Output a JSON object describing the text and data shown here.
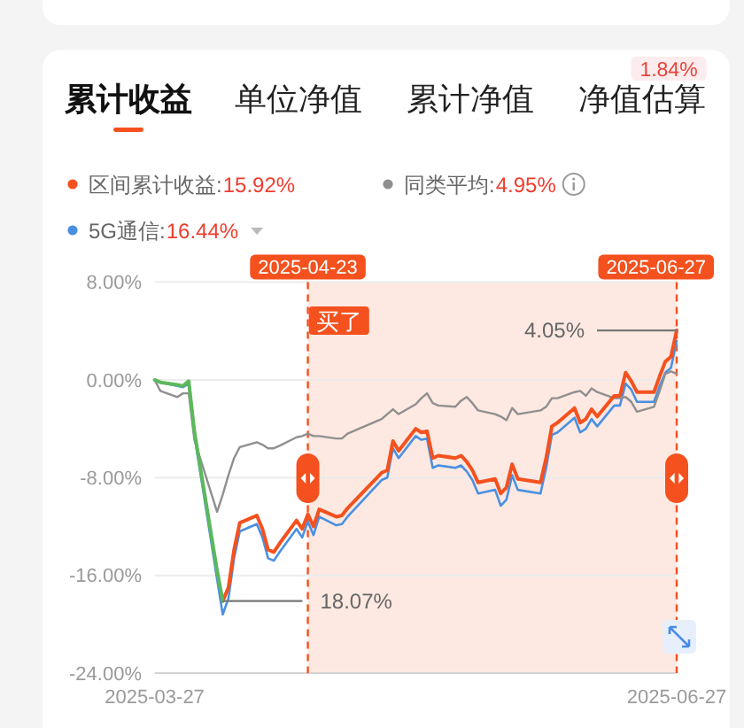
{
  "chart_data": {
    "type": "line",
    "annotations": [
      "累计收益",
      "单位净值",
      "累计净值",
      "净值估算",
      "1.84%",
      "15.92%",
      "4.95%",
      "16.44%",
      "买了",
      {
        "text": "18.07%",
        "x": "2025-04-08",
        "y": -18.1
      },
      {
        "text": "4.05%",
        "x": "2025-06-27",
        "y": 4.05
      }
    ],
    "x": [
      "2025-03-27",
      "2025-03-28",
      "2025-03-31",
      "2025-04-01",
      "2025-04-02",
      "2025-04-03",
      "2025-04-07",
      "2025-04-08",
      "2025-04-09",
      "2025-04-10",
      "2025-04-11",
      "2025-04-14",
      "2025-04-15",
      "2025-04-16",
      "2025-04-17",
      "2025-04-18",
      "2025-04-21",
      "2025-04-22",
      "2025-04-23",
      "2025-04-24",
      "2025-04-25",
      "2025-04-28",
      "2025-04-29",
      "2025-04-30",
      "2025-05-06",
      "2025-05-07",
      "2025-05-08",
      "2025-05-09",
      "2025-05-12",
      "2025-05-13",
      "2025-05-14",
      "2025-05-15",
      "2025-05-16",
      "2025-05-19",
      "2025-05-20",
      "2025-05-21",
      "2025-05-22",
      "2025-05-23",
      "2025-05-26",
      "2025-05-27",
      "2025-05-28",
      "2025-05-29",
      "2025-05-30",
      "2025-06-03",
      "2025-06-04",
      "2025-06-05",
      "2025-06-06",
      "2025-06-09",
      "2025-06-10",
      "2025-06-11",
      "2025-06-12",
      "2025-06-13",
      "2025-06-16",
      "2025-06-17",
      "2025-06-18",
      "2025-06-19",
      "2025-06-20",
      "2025-06-23",
      "2025-06-24",
      "2025-06-25",
      "2025-06-26",
      "2025-06-27"
    ],
    "series": [
      {
        "color": "#5cb85c",
        "values": [
          0,
          -0.2,
          -0.4,
          -0.5,
          -0.1,
          -4.2,
          -15.6,
          -18.1,
          null,
          null,
          null,
          null,
          null,
          null,
          null,
          null,
          null,
          null,
          null,
          null,
          null,
          null,
          null,
          null,
          null,
          null,
          null,
          null,
          null,
          null,
          null,
          null,
          null,
          null,
          null,
          null,
          null,
          null,
          null,
          null,
          null,
          null,
          null,
          null,
          null,
          null,
          null,
          null,
          null,
          null,
          null,
          null,
          null,
          null,
          null,
          null,
          null,
          null,
          null,
          null,
          null,
          null
        ]
      },
      {
        "name": "区间累计收益:",
        "color": "#f4511e",
        "values": [
          null,
          null,
          null,
          null,
          null,
          null,
          null,
          -18.1,
          -17.0,
          -13.9,
          -11.7,
          -11.1,
          -12.2,
          -13.9,
          -14.1,
          -13.4,
          -11.5,
          -12.2,
          -11.0,
          -12.0,
          -10.6,
          -11.2,
          -11.1,
          -10.5,
          -7.6,
          -7.4,
          -5.0,
          -5.8,
          -4.0,
          -4.3,
          -4.2,
          -6.4,
          -6.2,
          -6.4,
          -6.2,
          -6.7,
          -7.4,
          -8.4,
          -8.1,
          -9.3,
          -8.8,
          -6.9,
          -8.1,
          -8.4,
          -6.4,
          -3.8,
          -3.5,
          -2.3,
          -3.5,
          -3.2,
          -2.4,
          -3.0,
          -1.3,
          -1.3,
          0.6,
          -0.1,
          -1.0,
          -1.0,
          0.3,
          1.5,
          1.9,
          4.05
        ]
      },
      {
        "name": "同类平均:",
        "color": "#8f8f8f",
        "values": [
          0,
          -0.9,
          -1.4,
          -1.1,
          -1.1,
          -4.9,
          -10.8,
          -9.4,
          -7.8,
          -6.4,
          -5.5,
          -5.1,
          -5.3,
          -5.6,
          -5.6,
          -5.4,
          -4.7,
          -4.6,
          -4.4,
          -4.6,
          -4.6,
          -4.8,
          -4.8,
          -4.4,
          -3.2,
          -2.8,
          -2.4,
          -2.8,
          -2.0,
          -1.5,
          -1.1,
          -1.9,
          -2.1,
          -2.2,
          -1.7,
          -1.4,
          -1.9,
          -2.5,
          -2.8,
          -3.0,
          -3.3,
          -2.3,
          -2.8,
          -2.5,
          -2.2,
          -1.5,
          -1.5,
          -1.0,
          -0.9,
          -1.3,
          -0.7,
          -1.0,
          -1.5,
          -1.5,
          -1.4,
          -1.8,
          -2.6,
          -2.2,
          -0.9,
          0.5,
          0.7,
          0.5
        ]
      },
      {
        "name": "5G通信:",
        "color": "#4a90e2",
        "values": [
          0,
          -0.2,
          -0.5,
          -0.6,
          -0.3,
          -4.5,
          -16.3,
          -19.2,
          -17.9,
          -14.6,
          -12.4,
          -11.8,
          -12.9,
          -14.6,
          -14.8,
          -14.1,
          -12.2,
          -12.9,
          -11.6,
          -12.7,
          -11.2,
          -11.9,
          -11.8,
          -11.2,
          -8.2,
          -8.0,
          -5.6,
          -6.4,
          -4.6,
          -4.9,
          -4.8,
          -7.2,
          -7.0,
          -7.2,
          -7.0,
          -7.5,
          -8.2,
          -9.3,
          -9.0,
          -10.3,
          -9.8,
          -7.8,
          -9.0,
          -9.3,
          -7.2,
          -4.5,
          -4.3,
          -3.1,
          -4.3,
          -4.0,
          -3.2,
          -3.8,
          -2.1,
          -2.1,
          -0.3,
          -0.8,
          -1.8,
          -1.8,
          -0.5,
          0.6,
          1.0,
          3.2
        ]
      }
    ],
    "xlim": [
      "2025-03-27",
      "2025-06-27"
    ],
    "xticks": [
      "2025-03-27",
      "2025-06-27"
    ],
    "ylim": [
      -24,
      8
    ],
    "yticks": [
      {
        "value": 8,
        "label": "8.00%"
      },
      {
        "value": 0,
        "label": "0.00%"
      },
      {
        "value": -8,
        "label": "-8.00%"
      },
      {
        "value": -16,
        "label": "-16.00%"
      },
      {
        "value": -24,
        "label": "-24.00%"
      }
    ],
    "grid": "y",
    "legend": "top left",
    "marker": "none",
    "line_style": "solid",
    "ref_lines": [
      {
        "axis": "x",
        "value": "2025-04-23",
        "label": "2025-04-23",
        "color": "#f4511e",
        "line_style": "dashed"
      },
      {
        "axis": "x",
        "value": "2025-06-27",
        "label": "2025-06-27",
        "color": "#f4511e",
        "line_style": "dashed"
      }
    ],
    "bands": [
      {
        "axis": "x",
        "from": "2025-04-23",
        "to": "2025-06-27",
        "color": "#fde9e2"
      }
    ]
  }
}
